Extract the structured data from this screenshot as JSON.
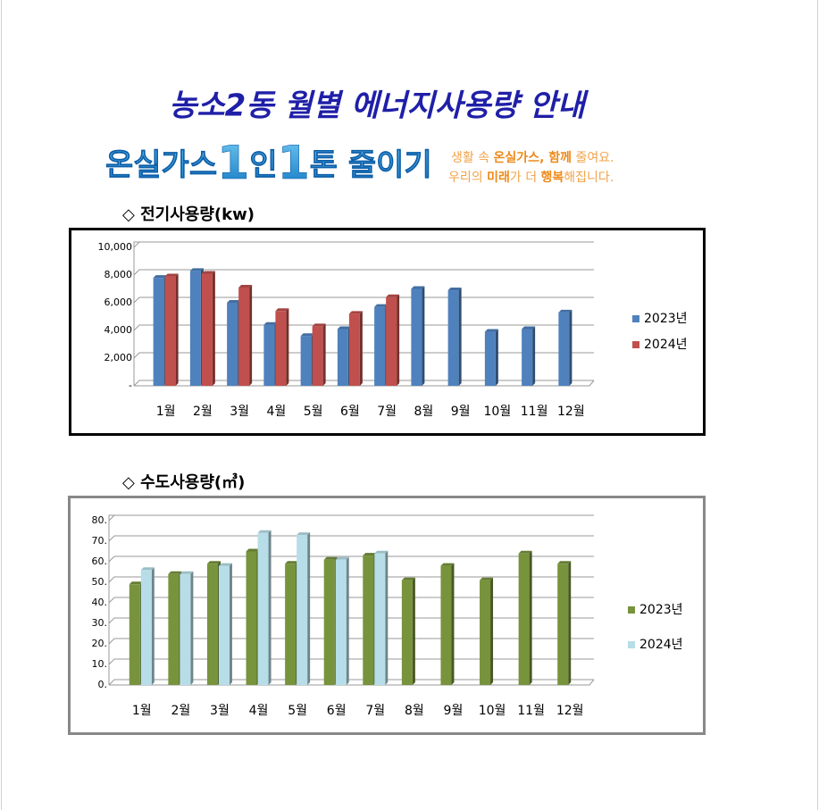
{
  "title": "농소2동 월별 에너지사용량 안내",
  "banner": {
    "parts": [
      "온실가스",
      "1",
      "인",
      "1",
      "톤 줄이기"
    ],
    "slogan_line1": [
      "생활 속 ",
      "온실가스, 함께",
      " 줄여요."
    ],
    "slogan_line2": [
      "우리의 ",
      "미래",
      "가 더 ",
      "행복",
      "해집니다."
    ]
  },
  "chart_data": [
    {
      "type": "bar",
      "title": "◇ 전기사용량(kw)",
      "categories": [
        "1월",
        "2월",
        "3월",
        "4월",
        "5월",
        "6월",
        "7월",
        "8월",
        "9월",
        "10월",
        "11월",
        "12월"
      ],
      "series": [
        {
          "name": "2023년",
          "color": "#4f81bd",
          "values": [
            7800,
            8300,
            6000,
            4400,
            3600,
            4100,
            5700,
            7000,
            6900,
            3900,
            4100,
            5300
          ]
        },
        {
          "name": "2024년",
          "color": "#c0504d",
          "values": [
            7900,
            8100,
            7100,
            5400,
            4300,
            5200,
            6400,
            null,
            null,
            null,
            null,
            null
          ]
        }
      ],
      "ylim": [
        0,
        10000
      ],
      "yticks": [
        {
          "value": 0,
          "label": "-"
        },
        {
          "value": 2000,
          "label": "2,000"
        },
        {
          "value": 4000,
          "label": "4,000"
        },
        {
          "value": 6000,
          "label": "6,000"
        },
        {
          "value": 8000,
          "label": "8,000"
        },
        {
          "value": 10000,
          "label": "10,000"
        }
      ],
      "grid": true,
      "legend": "right"
    },
    {
      "type": "bar",
      "title": "◇ 수도사용량(㎥)",
      "categories": [
        "1월",
        "2월",
        "3월",
        "4월",
        "5월",
        "6월",
        "7월",
        "8월",
        "9월",
        "10월",
        "11월",
        "12월"
      ],
      "series": [
        {
          "name": "2023년",
          "color": "#77933c",
          "values": [
            49,
            54,
            59,
            65,
            59,
            61,
            63,
            51,
            58,
            51,
            64,
            59
          ]
        },
        {
          "name": "2024년",
          "color": "#b7dee8",
          "values": [
            56,
            54,
            58,
            74,
            73,
            61,
            64,
            null,
            null,
            null,
            null,
            null
          ]
        }
      ],
      "ylim": [
        0,
        80
      ],
      "yticks": [
        {
          "value": 0,
          "label": "0."
        },
        {
          "value": 10,
          "label": "10."
        },
        {
          "value": 20,
          "label": "20."
        },
        {
          "value": 30,
          "label": "30."
        },
        {
          "value": 40,
          "label": "40."
        },
        {
          "value": 50,
          "label": "50."
        },
        {
          "value": 60,
          "label": "60."
        },
        {
          "value": 70,
          "label": "70."
        },
        {
          "value": 80,
          "label": "80."
        }
      ],
      "grid": true,
      "legend": "right"
    }
  ]
}
